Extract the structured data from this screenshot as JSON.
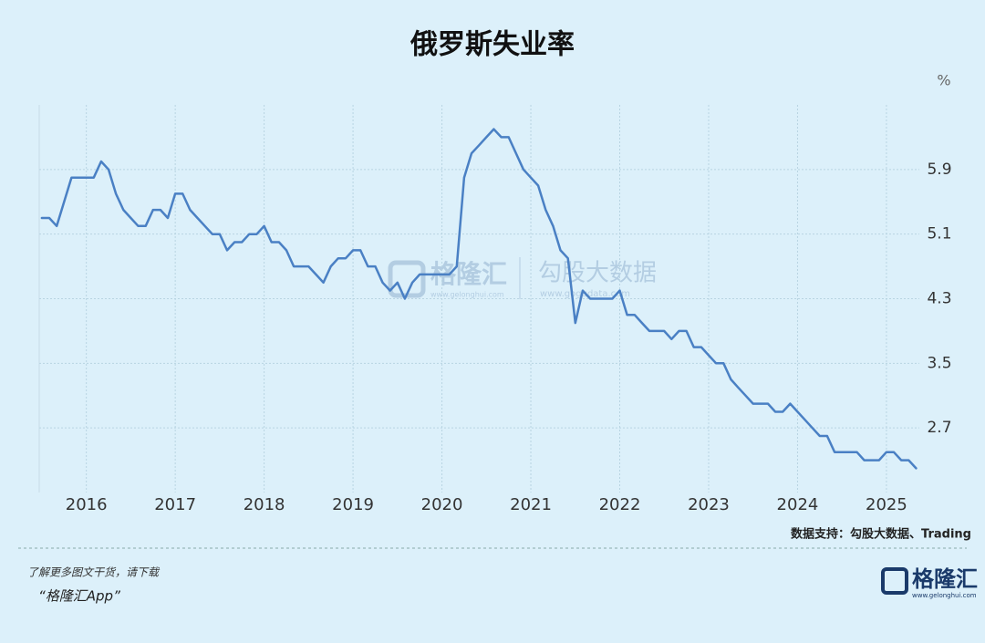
{
  "chart_data": {
    "type": "line",
    "title": "俄罗斯失业率",
    "y_unit": "%",
    "x": [
      2015.5,
      2015.583,
      2015.667,
      2015.75,
      2015.833,
      2015.917,
      2016,
      2016.083,
      2016.167,
      2016.25,
      2016.333,
      2016.417,
      2016.5,
      2016.583,
      2016.667,
      2016.75,
      2016.833,
      2016.917,
      2017,
      2017.083,
      2017.167,
      2017.25,
      2017.333,
      2017.417,
      2017.5,
      2017.583,
      2017.667,
      2017.75,
      2017.833,
      2017.917,
      2018,
      2018.083,
      2018.167,
      2018.25,
      2018.333,
      2018.417,
      2018.5,
      2018.583,
      2018.667,
      2018.75,
      2018.833,
      2018.917,
      2019,
      2019.083,
      2019.167,
      2019.25,
      2019.333,
      2019.417,
      2019.5,
      2019.583,
      2019.667,
      2019.75,
      2019.833,
      2019.917,
      2020,
      2020.083,
      2020.167,
      2020.25,
      2020.333,
      2020.417,
      2020.5,
      2020.583,
      2020.667,
      2020.75,
      2020.833,
      2020.917,
      2021,
      2021.083,
      2021.167,
      2021.25,
      2021.333,
      2021.417,
      2021.5,
      2021.583,
      2021.667,
      2021.75,
      2021.833,
      2021.917,
      2022,
      2022.083,
      2022.167,
      2022.25,
      2022.333,
      2022.417,
      2022.5,
      2022.583,
      2022.667,
      2022.75,
      2022.833,
      2022.917,
      2023,
      2023.083,
      2023.167,
      2023.25,
      2023.333,
      2023.417,
      2023.5,
      2023.583,
      2023.667,
      2023.75,
      2023.833,
      2023.917,
      2024,
      2024.083,
      2024.167,
      2024.25,
      2024.333,
      2024.417,
      2024.5,
      2024.583,
      2024.667,
      2024.75,
      2024.833,
      2024.917,
      2025,
      2025.083,
      2025.167,
      2025.25,
      2025.333
    ],
    "series": [
      {
        "name": "失业率",
        "color": "#4a80c4",
        "values": [
          5.3,
          5.3,
          5.2,
          5.5,
          5.8,
          5.8,
          5.8,
          5.8,
          6.0,
          5.9,
          5.6,
          5.4,
          5.3,
          5.2,
          5.2,
          5.4,
          5.4,
          5.3,
          5.6,
          5.6,
          5.4,
          5.3,
          5.2,
          5.1,
          5.1,
          4.9,
          5.0,
          5.0,
          5.1,
          5.1,
          5.2,
          5.0,
          5.0,
          4.9,
          4.7,
          4.7,
          4.7,
          4.6,
          4.5,
          4.7,
          4.8,
          4.8,
          4.9,
          4.9,
          4.7,
          4.7,
          4.5,
          4.4,
          4.5,
          4.3,
          4.5,
          4.6,
          4.6,
          4.6,
          4.6,
          4.6,
          4.7,
          5.8,
          6.1,
          6.2,
          6.3,
          6.4,
          6.3,
          6.3,
          6.1,
          5.9,
          5.8,
          5.7,
          5.4,
          5.2,
          4.9,
          4.8,
          4.0,
          4.4,
          4.3,
          4.3,
          4.3,
          4.3,
          4.4,
          4.1,
          4.1,
          4.0,
          3.9,
          3.9,
          3.9,
          3.8,
          3.9,
          3.9,
          3.7,
          3.7,
          3.6,
          3.5,
          3.5,
          3.3,
          3.2,
          3.1,
          3.0,
          3.0,
          3.0,
          2.9,
          2.9,
          3.0,
          2.9,
          2.8,
          2.7,
          2.6,
          2.6,
          2.4,
          2.4,
          2.4,
          2.4,
          2.3,
          2.3,
          2.3,
          2.4,
          2.4,
          2.3,
          2.3,
          2.2
        ]
      }
    ],
    "xlim": [
      2015.47,
      2025.37
    ],
    "xticks": [
      2016,
      2017,
      2018,
      2019,
      2020,
      2021,
      2022,
      2023,
      2024,
      2025
    ],
    "ylim": [
      1.9,
      6.7
    ],
    "yticks": [
      2.7,
      3.5,
      4.3,
      5.1,
      5.9
    ],
    "grid": true,
    "source": "数据支持：勾股大数据、Trading"
  },
  "watermark": {
    "left": "格隆汇",
    "left_url": "www.gelonghui.com",
    "right": "勾股大数据",
    "right_url": "www.gogudata.com"
  },
  "footer": {
    "line1": "了解更多图文干货，请下载",
    "line2": "“格隆汇App”",
    "logo": "格隆汇",
    "logo_url": "www.gelonghui.com"
  }
}
